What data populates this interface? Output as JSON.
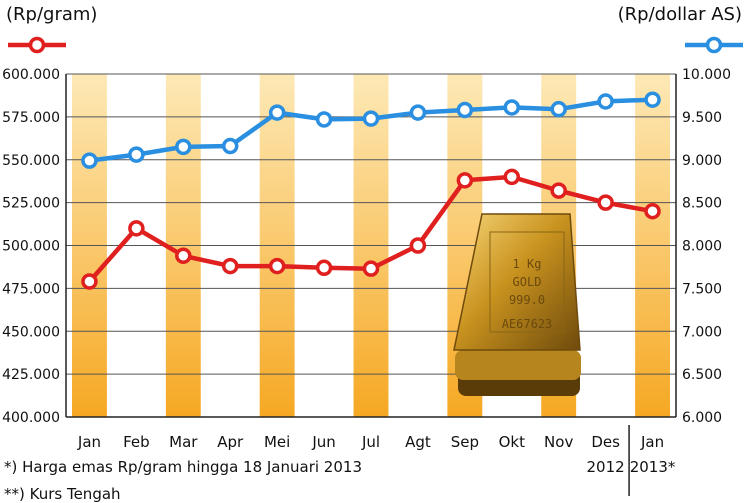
{
  "chart_data": {
    "type": "line",
    "left_axis_label": "(Rp/gram)",
    "right_axis_label": "(Rp/dollar AS)",
    "categories": [
      "Jan",
      "Feb",
      "Mar",
      "Apr",
      "Mei",
      "Jun",
      "Jul",
      "Agt",
      "Sep",
      "Okt",
      "Nov",
      "Des\n2012",
      "Jan\n2013*"
    ],
    "series": [
      {
        "axis": "left",
        "color": "#e01f1f",
        "values": [
          479000,
          510000,
          494000,
          488000,
          488000,
          487000,
          486500,
          500000,
          538000,
          540000,
          532000,
          525000,
          520000
        ]
      },
      {
        "axis": "right",
        "color": "#2a8fe0",
        "values": [
          8990,
          9060,
          9150,
          9160,
          9550,
          9470,
          9480,
          9550,
          9580,
          9610,
          9590,
          9680,
          9700
        ]
      }
    ],
    "left_ylim": [
      400000,
      600000
    ],
    "right_ylim": [
      6000,
      10000
    ],
    "left_ticks": [
      "400.000",
      "425.000",
      "450.000",
      "475.000",
      "500.000",
      "525.000",
      "550.000",
      "575.000",
      "600.000"
    ],
    "right_ticks": [
      "6.000",
      "6.500",
      "7.000",
      "7.500",
      "8.000",
      "8.500",
      "9.000",
      "9.500",
      "10.000"
    ],
    "x_labels": [
      {
        "line1": "Jan",
        "line2": ""
      },
      {
        "line1": "Feb",
        "line2": ""
      },
      {
        "line1": "Mar",
        "line2": ""
      },
      {
        "line1": "Apr",
        "line2": ""
      },
      {
        "line1": "Mei",
        "line2": ""
      },
      {
        "line1": "Jun",
        "line2": ""
      },
      {
        "line1": "Jul",
        "line2": ""
      },
      {
        "line1": "Agt",
        "line2": ""
      },
      {
        "line1": "Sep",
        "line2": ""
      },
      {
        "line1": "Okt",
        "line2": ""
      },
      {
        "line1": "Nov",
        "line2": ""
      },
      {
        "line1": "Des",
        "line2": "2012"
      },
      {
        "line1": "Jan",
        "line2": "2013*"
      }
    ],
    "grid": true,
    "band_colors": [
      "#f6a823",
      "#fde9b6"
    ],
    "bar_stamp": [
      "1 Kg",
      "GOLD",
      "999.0",
      "AE67623"
    ]
  },
  "notes": {
    "note1": "*) Harga emas Rp/gram hingga 18 Januari 2013",
    "note2": "**) Kurs Tengah"
  }
}
